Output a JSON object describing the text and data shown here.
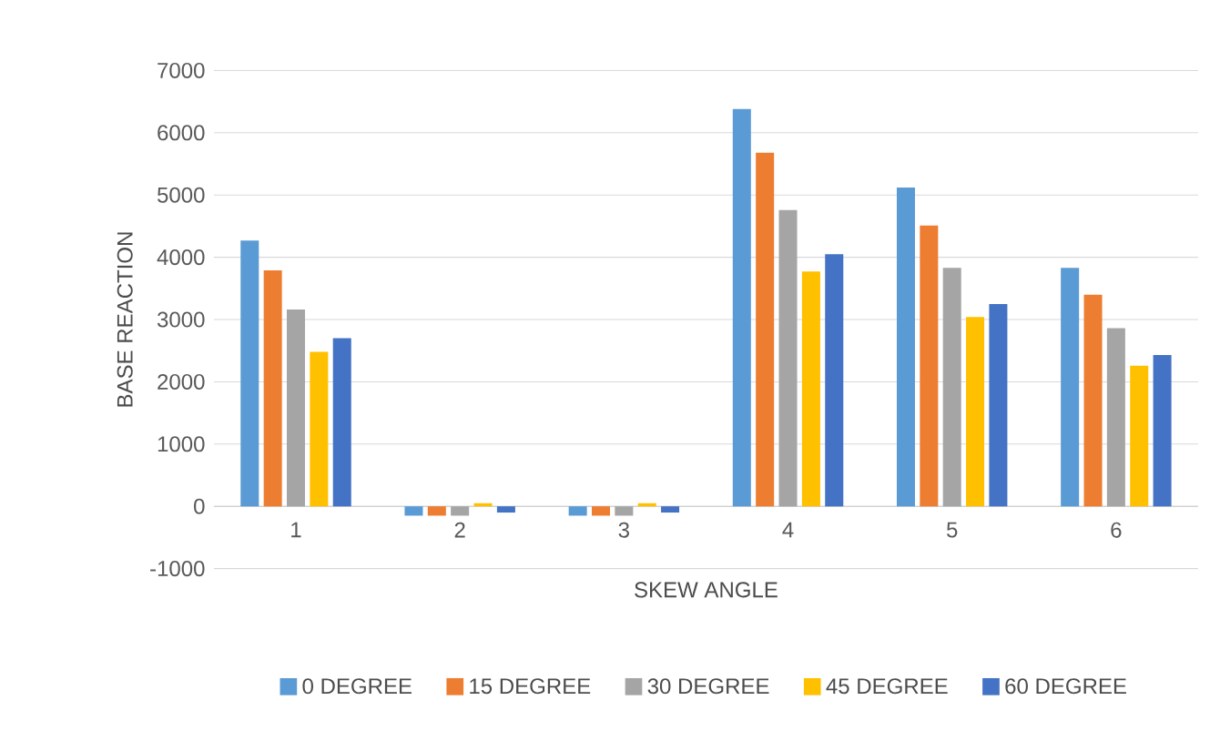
{
  "chart_data": {
    "type": "bar",
    "xlabel": "SKEW ANGLE",
    "ylabel": "BASE REACTION",
    "categories": [
      "1",
      "2",
      "3",
      "4",
      "5",
      "6"
    ],
    "series": [
      {
        "name": "0 DEGREE",
        "color": "#5b9bd5",
        "values": [
          4270,
          -150,
          -150,
          6380,
          5120,
          3830
        ]
      },
      {
        "name": "15 DEGREE",
        "color": "#ed7d31",
        "values": [
          3790,
          -150,
          -150,
          5680,
          4510,
          3400
        ]
      },
      {
        "name": "30 DEGREE",
        "color": "#a5a5a5",
        "values": [
          3160,
          -150,
          -150,
          4760,
          3830,
          2860
        ]
      },
      {
        "name": "45 DEGREE",
        "color": "#ffc000",
        "values": [
          2480,
          50,
          50,
          3770,
          3040,
          2260
        ]
      },
      {
        "name": "60 DEGREE",
        "color": "#4472c4",
        "values": [
          2700,
          -100,
          -100,
          4050,
          3250,
          2430
        ]
      }
    ],
    "ylim": [
      -1000,
      7000
    ],
    "yticks": [
      -1000,
      0,
      1000,
      2000,
      3000,
      4000,
      5000,
      6000,
      7000
    ],
    "grid": "y",
    "legend": "bottom"
  }
}
